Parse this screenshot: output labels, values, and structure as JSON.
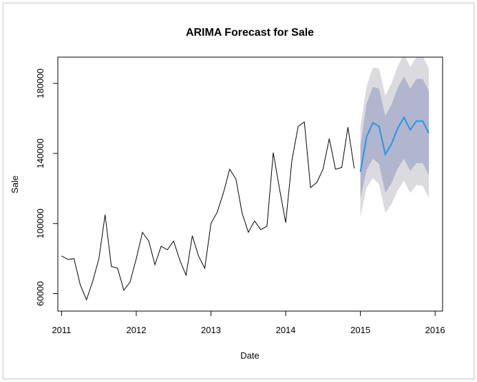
{
  "chart_data": {
    "type": "line",
    "title": "ARIMA Forecast for Sale",
    "xlabel": "Date",
    "ylabel": "Sale",
    "xlim": [
      2010.95,
      2016.1
    ],
    "ylim": [
      50000,
      195000
    ],
    "x_ticks": [
      2011,
      2012,
      2013,
      2014,
      2015,
      2016
    ],
    "x_tick_labels": [
      "2011",
      "2012",
      "2013",
      "2014",
      "2015",
      "2016"
    ],
    "y_ticks": [
      60000,
      100000,
      140000,
      180000
    ],
    "y_tick_labels": [
      "60000",
      "100000",
      "140000",
      "180000"
    ],
    "grid": false,
    "colors": {
      "history": "#000000",
      "forecast": "#2297e6",
      "band80": "#b1b5ce",
      "band95": "#dbdbdf"
    },
    "history": {
      "x": [
        2011.0,
        2011.0833,
        2011.1667,
        2011.25,
        2011.3333,
        2011.4167,
        2011.5,
        2011.5833,
        2011.6667,
        2011.75,
        2011.8333,
        2011.9167,
        2012.0,
        2012.0833,
        2012.1667,
        2012.25,
        2012.3333,
        2012.4167,
        2012.5,
        2012.5833,
        2012.6667,
        2012.75,
        2012.8333,
        2012.9167,
        2013.0,
        2013.0833,
        2013.1667,
        2013.25,
        2013.3333,
        2013.4167,
        2013.5,
        2013.5833,
        2013.6667,
        2013.75,
        2013.8333,
        2013.9167,
        2014.0,
        2014.0833,
        2014.1667,
        2014.25,
        2014.3333,
        2014.4167,
        2014.5,
        2014.5833,
        2014.6667,
        2014.75,
        2014.8333,
        2014.9167
      ],
      "y": [
        81500,
        79500,
        80000,
        65000,
        56500,
        67000,
        80000,
        105000,
        75500,
        74500,
        62000,
        66500,
        80000,
        95000,
        90000,
        76500,
        87000,
        85000,
        90000,
        79000,
        70500,
        93000,
        81500,
        74500,
        100000,
        106500,
        117500,
        131000,
        125500,
        106000,
        95000,
        101500,
        96500,
        98500,
        140500,
        120000,
        100500,
        136000,
        155500,
        158000,
        120500,
        123500,
        131000,
        148500,
        131000,
        132000,
        155000,
        131500
      ]
    },
    "forecast": {
      "x": [
        2015.0,
        2015.0833,
        2015.1667,
        2015.25,
        2015.3333,
        2015.4167,
        2015.5,
        2015.5833,
        2015.6667,
        2015.75,
        2015.8333,
        2015.9167
      ],
      "mean": [
        129500,
        149500,
        157500,
        155500,
        139500,
        145500,
        154500,
        160500,
        153500,
        158500,
        158500,
        151500
      ],
      "lo80": [
        114500,
        130500,
        137000,
        134000,
        117500,
        123000,
        131500,
        137000,
        130000,
        134500,
        134500,
        127500
      ],
      "hi80": [
        144500,
        168500,
        178000,
        177000,
        161500,
        168000,
        177500,
        184000,
        177000,
        182500,
        182500,
        175500
      ],
      "lo95": [
        104000,
        120500,
        126000,
        122500,
        106000,
        111000,
        119000,
        124500,
        117500,
        122000,
        121500,
        114500
      ],
      "hi95": [
        155000,
        178500,
        189000,
        188500,
        173000,
        180000,
        190000,
        196500,
        189500,
        195000,
        195500,
        188500
      ]
    }
  }
}
